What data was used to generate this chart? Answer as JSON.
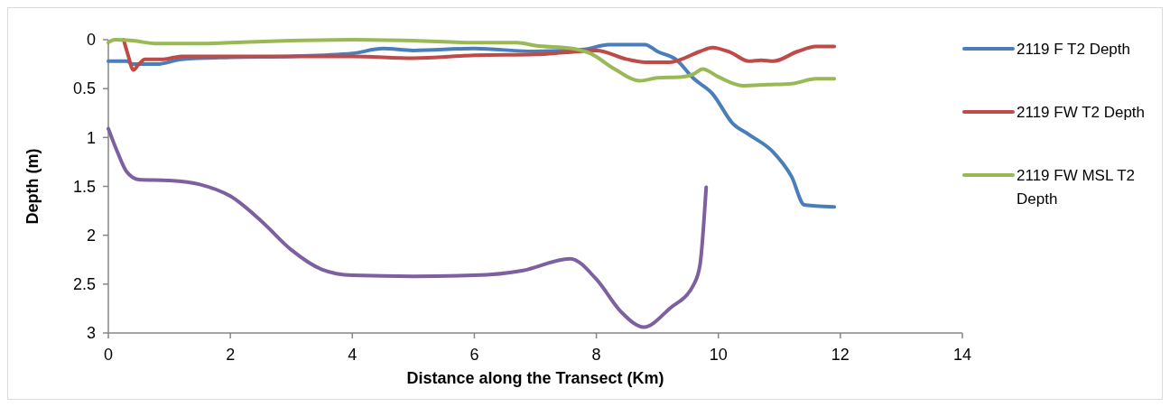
{
  "chart_data": {
    "type": "line",
    "xlabel": "Distance along the Transect (Km)",
    "ylabel": "Depth (m)",
    "xlim": [
      0,
      14
    ],
    "xticks": [
      0,
      2,
      4,
      6,
      8,
      10,
      12,
      14
    ],
    "ylim": [
      3,
      0
    ],
    "yticks": [
      0,
      0.5,
      1,
      1.5,
      2,
      2.5,
      3
    ],
    "grid": false,
    "legend": "right",
    "marker": "none",
    "line_style": "solid",
    "series": [
      {
        "name": "2119 F T2 Depth",
        "color": "#4a7ebb",
        "x": [
          0,
          0.3,
          0.4,
          0.8,
          1.2,
          2,
          3,
          4,
          4.5,
          5,
          6,
          7,
          7.8,
          8.2,
          8.8,
          9,
          9.3,
          9.6,
          9.9,
          10.24,
          10.5,
          10.9,
          11.2,
          11.41,
          11.6,
          11.9
        ],
        "values": [
          0.22,
          0.22,
          0.25,
          0.25,
          0.2,
          0.18,
          0.17,
          0.14,
          0.09,
          0.11,
          0.09,
          0.12,
          0.1,
          0.05,
          0.05,
          0.12,
          0.2,
          0.4,
          0.55,
          0.86,
          0.97,
          1.15,
          1.4,
          1.69,
          1.7,
          1.71
        ]
      },
      {
        "name": "2119 FW T2 Depth",
        "color": "#be4b48",
        "x": [
          0.25,
          0.32,
          0.41,
          0.5,
          0.6,
          0.9,
          1.2,
          2,
          3,
          4,
          5,
          6,
          7,
          7.5,
          8,
          8.5,
          8.8,
          9.2,
          9.7,
          9.9,
          10.2,
          10.5,
          10.7,
          10.9,
          11.3,
          11.6,
          11.9
        ],
        "values": [
          0,
          0.15,
          0.31,
          0.25,
          0.2,
          0.2,
          0.17,
          0.17,
          0.17,
          0.17,
          0.19,
          0.16,
          0.15,
          0.13,
          0.11,
          0.2,
          0.23,
          0.23,
          0.12,
          0.08,
          0.13,
          0.22,
          0.21,
          0.22,
          0.12,
          0.07,
          0.07
        ]
      },
      {
        "name": "2119 FW MSL T2 Depth",
        "color": "#98b954",
        "x": [
          0,
          0.1,
          0.4,
          0.8,
          1.5,
          2,
          3,
          4,
          5,
          6,
          6.7,
          7,
          7.6,
          7.9,
          8.3,
          8.71,
          9,
          9.4,
          9.6,
          9.74,
          10,
          10.4,
          10.8,
          11.2,
          11.6,
          11.9
        ],
        "values": [
          0.03,
          0,
          0.01,
          0.04,
          0.04,
          0.03,
          0.01,
          0,
          0.01,
          0.03,
          0.03,
          0.06,
          0.09,
          0.14,
          0.3,
          0.42,
          0.39,
          0.38,
          0.35,
          0.3,
          0.38,
          0.47,
          0.46,
          0.45,
          0.4,
          0.4
        ]
      },
      {
        "color": "#7d60a0",
        "x": [
          0,
          0.15,
          0.3,
          0.5,
          1,
          1.5,
          2,
          2.5,
          3,
          3.5,
          4,
          5,
          6,
          6.8,
          7.57,
          8,
          8.4,
          8.78,
          9.2,
          9.6,
          9.7,
          9.8
        ],
        "values": [
          0.91,
          1.15,
          1.35,
          1.43,
          1.44,
          1.48,
          1.6,
          1.85,
          2.15,
          2.35,
          2.41,
          2.42,
          2.41,
          2.36,
          2.24,
          2.45,
          2.78,
          2.94,
          2.75,
          2.5,
          2.3,
          1.51
        ]
      }
    ]
  }
}
